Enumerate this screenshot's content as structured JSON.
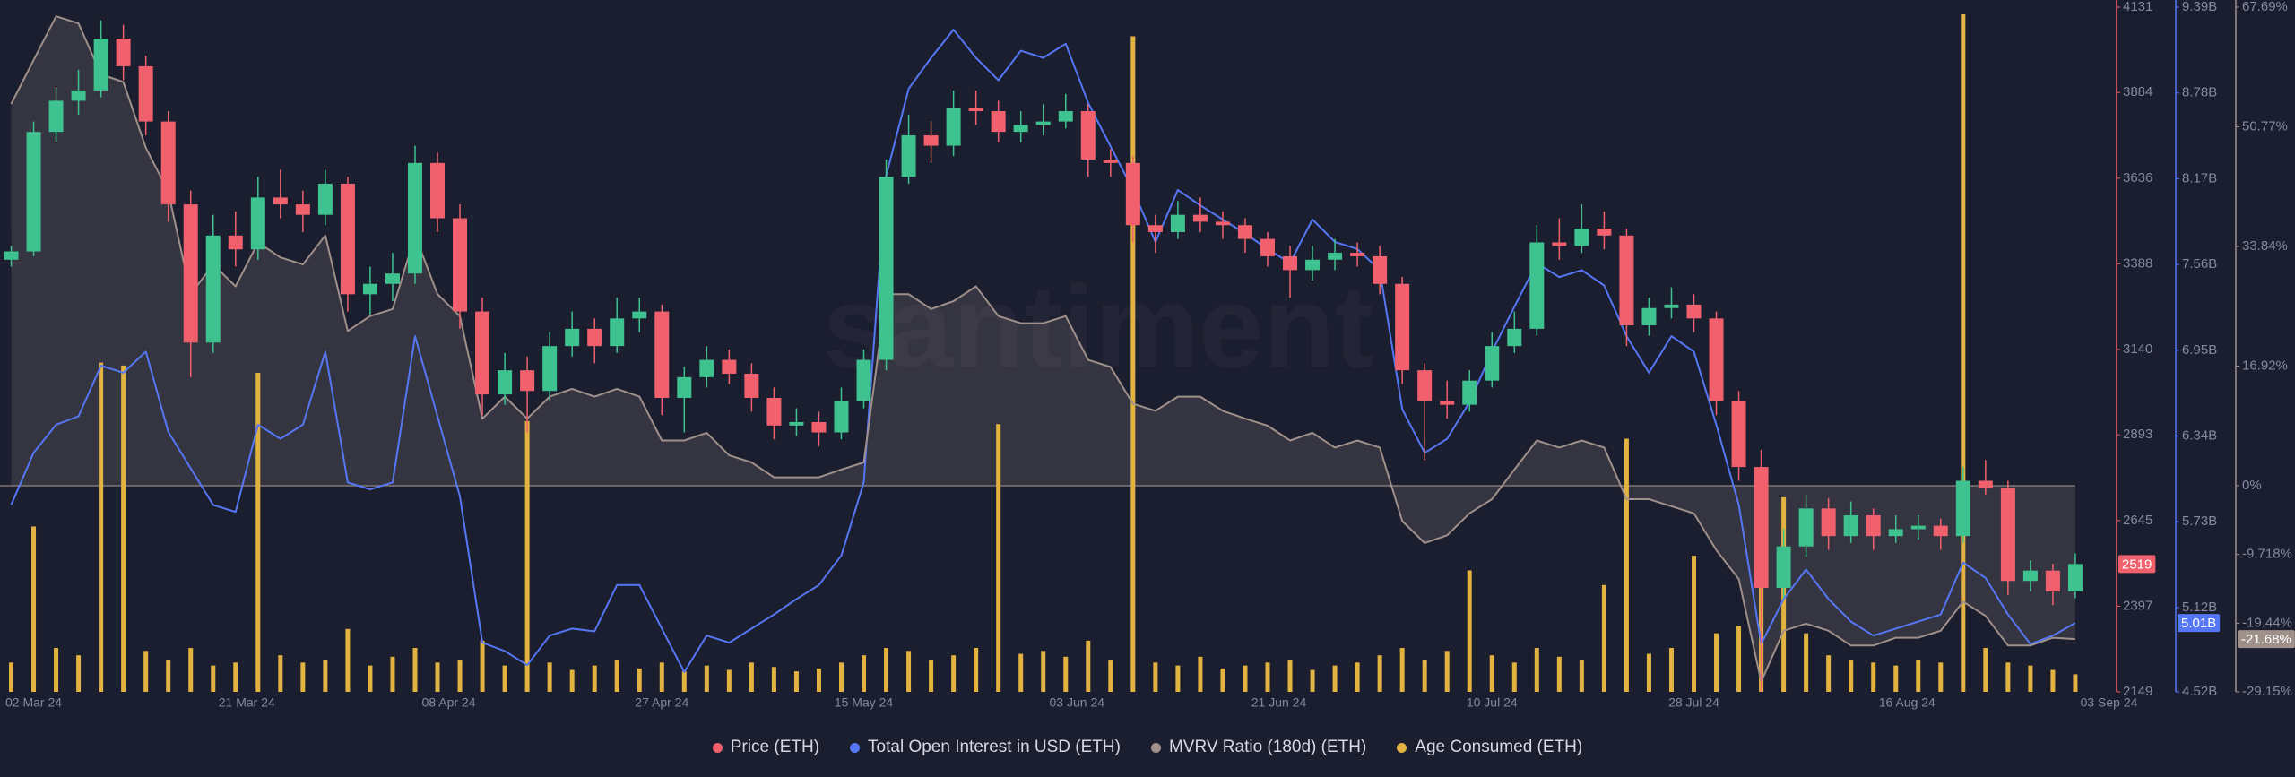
{
  "chart_data": {
    "type": "candlestick",
    "watermark": "santiment",
    "x": [
      "2024-02-29",
      "2024-03-02",
      "2024-03-04",
      "2024-03-06",
      "2024-03-08",
      "2024-03-10",
      "2024-03-12",
      "2024-03-14",
      "2024-03-16",
      "2024-03-18",
      "2024-03-20",
      "2024-03-22",
      "2024-03-24",
      "2024-03-26",
      "2024-03-28",
      "2024-03-30",
      "2024-04-01",
      "2024-04-03",
      "2024-04-05",
      "2024-04-07",
      "2024-04-09",
      "2024-04-11",
      "2024-04-13",
      "2024-04-15",
      "2024-04-17",
      "2024-04-19",
      "2024-04-21",
      "2024-04-23",
      "2024-04-25",
      "2024-04-27",
      "2024-04-29",
      "2024-05-01",
      "2024-05-03",
      "2024-05-05",
      "2024-05-07",
      "2024-05-09",
      "2024-05-11",
      "2024-05-13",
      "2024-05-15",
      "2024-05-17",
      "2024-05-19",
      "2024-05-21",
      "2024-05-23",
      "2024-05-25",
      "2024-05-27",
      "2024-05-29",
      "2024-05-31",
      "2024-06-02",
      "2024-06-04",
      "2024-06-06",
      "2024-06-08",
      "2024-06-10",
      "2024-06-12",
      "2024-06-14",
      "2024-06-16",
      "2024-06-18",
      "2024-06-20",
      "2024-06-22",
      "2024-06-24",
      "2024-06-26",
      "2024-06-28",
      "2024-06-30",
      "2024-07-02",
      "2024-07-04",
      "2024-07-06",
      "2024-07-08",
      "2024-07-10",
      "2024-07-12",
      "2024-07-14",
      "2024-07-16",
      "2024-07-18",
      "2024-07-20",
      "2024-07-22",
      "2024-07-24",
      "2024-07-26",
      "2024-07-28",
      "2024-07-30",
      "2024-08-01",
      "2024-08-03",
      "2024-08-05",
      "2024-08-07",
      "2024-08-09",
      "2024-08-11",
      "2024-08-13",
      "2024-08-15",
      "2024-08-17",
      "2024-08-19",
      "2024-08-21",
      "2024-08-23",
      "2024-08-25",
      "2024-08-27",
      "2024-08-29",
      "2024-08-31"
    ],
    "xlim": [
      "2024-02-28",
      "2024-09-04"
    ],
    "xticks": [
      {
        "value": "2024-03-02",
        "label": "02 Mar 24"
      },
      {
        "value": "2024-03-21",
        "label": "21 Mar 24"
      },
      {
        "value": "2024-04-08",
        "label": "08 Apr 24"
      },
      {
        "value": "2024-04-27",
        "label": "27 Apr 24"
      },
      {
        "value": "2024-05-15",
        "label": "15 May 24"
      },
      {
        "value": "2024-06-03",
        "label": "03 Jun 24"
      },
      {
        "value": "2024-06-21",
        "label": "21 Jun 24"
      },
      {
        "value": "2024-07-10",
        "label": "10 Jul 24"
      },
      {
        "value": "2024-07-28",
        "label": "28 Jul 24"
      },
      {
        "value": "2024-08-16",
        "label": "16 Aug 24"
      },
      {
        "value": "2024-09-03",
        "label": "03 Sep 24"
      }
    ],
    "ylim": [
      2149,
      4131
    ],
    "yticks": [
      4131,
      3884,
      3636,
      3388,
      3140,
      2893,
      2645,
      2397,
      2149
    ],
    "y2lim": [
      4520000000.0,
      9390000000.0
    ],
    "y2ticks": [
      {
        "value": 9390000000.0,
        "label": "9.39B"
      },
      {
        "value": 8780000000.0,
        "label": "8.78B"
      },
      {
        "value": 8170000000.0,
        "label": "8.17B"
      },
      {
        "value": 7560000000.0,
        "label": "7.56B"
      },
      {
        "value": 6950000000.0,
        "label": "6.95B"
      },
      {
        "value": 6340000000.0,
        "label": "6.34B"
      },
      {
        "value": 5730000000.0,
        "label": "5.73B"
      },
      {
        "value": 5120000000.0,
        "label": "5.12B"
      },
      {
        "value": 4520000000.0,
        "label": "4.52B"
      }
    ],
    "y3lim": [
      -29.15,
      67.69
    ],
    "y3ticks": [
      {
        "value": 67.69,
        "label": "67.69%"
      },
      {
        "value": 50.77,
        "label": "50.77%"
      },
      {
        "value": 33.84,
        "label": "33.84%"
      },
      {
        "value": 16.92,
        "label": "16.92%"
      },
      {
        "value": 0,
        "label": "0%"
      },
      {
        "value": -9.718,
        "label": "-9.718%"
      },
      {
        "value": -19.44,
        "label": "-19.44%"
      },
      {
        "value": -29.15,
        "label": "-29.15%"
      }
    ],
    "series": [
      {
        "name": "Price (ETH)",
        "type": "candlestick",
        "axis": "y",
        "color": "#f0616d",
        "up_color": "#3ec28f",
        "values": [
          [
            3400,
            3440,
            3380,
            3424
          ],
          [
            3424,
            3800,
            3410,
            3770
          ],
          [
            3770,
            3900,
            3740,
            3860
          ],
          [
            3860,
            3950,
            3820,
            3890
          ],
          [
            3890,
            4093,
            3870,
            4040
          ],
          [
            4040,
            4080,
            3920,
            3960
          ],
          [
            3960,
            3990,
            3760,
            3800
          ],
          [
            3800,
            3830,
            3510,
            3560
          ],
          [
            3560,
            3600,
            3060,
            3160
          ],
          [
            3160,
            3530,
            3130,
            3470
          ],
          [
            3470,
            3540,
            3380,
            3430
          ],
          [
            3430,
            3640,
            3400,
            3580
          ],
          [
            3580,
            3660,
            3520,
            3560
          ],
          [
            3560,
            3600,
            3480,
            3530
          ],
          [
            3530,
            3660,
            3500,
            3620
          ],
          [
            3620,
            3640,
            3250,
            3300
          ],
          [
            3300,
            3380,
            3240,
            3330
          ],
          [
            3330,
            3420,
            3280,
            3360
          ],
          [
            3360,
            3730,
            3330,
            3680
          ],
          [
            3680,
            3710,
            3480,
            3520
          ],
          [
            3520,
            3560,
            3200,
            3250
          ],
          [
            3250,
            3290,
            2950,
            3010
          ],
          [
            3010,
            3130,
            2980,
            3080
          ],
          [
            3080,
            3120,
            2900,
            3020
          ],
          [
            3020,
            3190,
            2990,
            3150
          ],
          [
            3150,
            3250,
            3120,
            3200
          ],
          [
            3200,
            3230,
            3100,
            3150
          ],
          [
            3150,
            3290,
            3130,
            3230
          ],
          [
            3230,
            3290,
            3190,
            3250
          ],
          [
            3250,
            3270,
            2950,
            3000
          ],
          [
            3000,
            3090,
            2900,
            3060
          ],
          [
            3060,
            3150,
            3030,
            3110
          ],
          [
            3110,
            3140,
            3040,
            3070
          ],
          [
            3070,
            3100,
            2960,
            3000
          ],
          [
            3000,
            3030,
            2880,
            2920
          ],
          [
            2920,
            2970,
            2890,
            2930
          ],
          [
            2930,
            2960,
            2860,
            2900
          ],
          [
            2900,
            3030,
            2880,
            2990
          ],
          [
            2990,
            3140,
            2970,
            3110
          ],
          [
            3110,
            3690,
            3080,
            3640
          ],
          [
            3640,
            3820,
            3620,
            3760
          ],
          [
            3760,
            3800,
            3680,
            3730
          ],
          [
            3730,
            3890,
            3700,
            3840
          ],
          [
            3840,
            3890,
            3790,
            3830
          ],
          [
            3830,
            3860,
            3740,
            3770
          ],
          [
            3770,
            3830,
            3740,
            3790
          ],
          [
            3790,
            3850,
            3760,
            3800
          ],
          [
            3800,
            3880,
            3780,
            3830
          ],
          [
            3830,
            3850,
            3640,
            3690
          ],
          [
            3690,
            3720,
            3640,
            3680
          ],
          [
            3680,
            3700,
            3450,
            3500
          ],
          [
            3500,
            3530,
            3420,
            3480
          ],
          [
            3480,
            3570,
            3460,
            3530
          ],
          [
            3530,
            3580,
            3480,
            3510
          ],
          [
            3510,
            3540,
            3460,
            3500
          ],
          [
            3500,
            3520,
            3420,
            3460
          ],
          [
            3460,
            3480,
            3380,
            3410
          ],
          [
            3410,
            3440,
            3290,
            3370
          ],
          [
            3370,
            3440,
            3340,
            3400
          ],
          [
            3400,
            3460,
            3370,
            3420
          ],
          [
            3420,
            3450,
            3380,
            3410
          ],
          [
            3410,
            3440,
            3300,
            3330
          ],
          [
            3330,
            3350,
            3040,
            3080
          ],
          [
            3080,
            3100,
            2820,
            2990
          ],
          [
            2990,
            3050,
            2940,
            2980
          ],
          [
            2980,
            3080,
            2960,
            3050
          ],
          [
            3050,
            3190,
            3030,
            3150
          ],
          [
            3150,
            3250,
            3130,
            3200
          ],
          [
            3200,
            3500,
            3180,
            3450
          ],
          [
            3450,
            3520,
            3400,
            3440
          ],
          [
            3440,
            3560,
            3420,
            3490
          ],
          [
            3490,
            3540,
            3430,
            3470
          ],
          [
            3470,
            3490,
            3150,
            3210
          ],
          [
            3210,
            3290,
            3180,
            3260
          ],
          [
            3260,
            3320,
            3230,
            3270
          ],
          [
            3270,
            3300,
            3190,
            3230
          ],
          [
            3230,
            3250,
            2950,
            2990
          ],
          [
            2990,
            3020,
            2760,
            2800
          ],
          [
            2800,
            2850,
            2150,
            2450
          ],
          [
            2450,
            2620,
            2420,
            2570
          ],
          [
            2570,
            2720,
            2540,
            2680
          ],
          [
            2680,
            2710,
            2560,
            2600
          ],
          [
            2600,
            2700,
            2580,
            2660
          ],
          [
            2660,
            2680,
            2560,
            2600
          ],
          [
            2600,
            2660,
            2580,
            2620
          ],
          [
            2620,
            2660,
            2590,
            2630
          ],
          [
            2630,
            2650,
            2560,
            2600
          ],
          [
            2600,
            2800,
            2580,
            2760
          ],
          [
            2760,
            2820,
            2720,
            2740
          ],
          [
            2740,
            2760,
            2430,
            2470
          ],
          [
            2470,
            2530,
            2440,
            2500
          ],
          [
            2500,
            2520,
            2400,
            2440
          ],
          [
            2440,
            2550,
            2420,
            2519
          ]
        ],
        "last_value": 2519
      },
      {
        "name": "Total Open Interest in USD (ETH)",
        "type": "line",
        "axis": "y2",
        "color": "#5677f5",
        "values": [
          5850000000.0,
          6220000000.0,
          6420000000.0,
          6480000000.0,
          6840000000.0,
          6790000000.0,
          6940000000.0,
          6370000000.0,
          6110000000.0,
          5850000000.0,
          5800000000.0,
          6420000000.0,
          6320000000.0,
          6420000000.0,
          6940000000.0,
          6010000000.0,
          5960000000.0,
          6010000000.0,
          7050000000.0,
          6480000000.0,
          5910000000.0,
          4870000000.0,
          4810000000.0,
          4710000000.0,
          4920000000.0,
          4970000000.0,
          4950000000.0,
          5280000000.0,
          5280000000.0,
          4970000000.0,
          4660000000.0,
          4920000000.0,
          4870000000.0,
          4970000000.0,
          5070000000.0,
          5180000000.0,
          5280000000.0,
          5490000000.0,
          6010000000.0,
          8190000000.0,
          8810000000.0,
          9030000000.0,
          9230000000.0,
          9030000000.0,
          8870000000.0,
          9080000000.0,
          9030000000.0,
          9130000000.0,
          8710000000.0,
          8400000000.0,
          8090000000.0,
          7720000000.0,
          8090000000.0,
          7980000000.0,
          7880000000.0,
          7780000000.0,
          7670000000.0,
          7570000000.0,
          7880000000.0,
          7720000000.0,
          7670000000.0,
          7520000000.0,
          6530000000.0,
          6220000000.0,
          6320000000.0,
          6580000000.0,
          6940000000.0,
          7260000000.0,
          7570000000.0,
          7470000000.0,
          7520000000.0,
          7410000000.0,
          7050000000.0,
          6790000000.0,
          7050000000.0,
          6940000000.0,
          6420000000.0,
          5850000000.0,
          4860000000.0,
          5180000000.0,
          5390000000.0,
          5180000000.0,
          5020000000.0,
          4920000000.0,
          4970000000.0,
          5020000000.0,
          5070000000.0,
          5440000000.0,
          5330000000.0,
          5070000000.0,
          4860000000.0,
          4920000000.0,
          5010000000.0
        ],
        "last_value": {
          "value": 5010000000.0,
          "label": "5.01B"
        }
      },
      {
        "name": "MVRV Ratio (180d) (ETH)",
        "type": "area",
        "axis": "y3",
        "color": "#a0908a",
        "values": [
          54.0,
          60.2,
          66.4,
          65.4,
          58.2,
          57.1,
          47.8,
          41.6,
          27.1,
          31.3,
          28.2,
          34.4,
          32.3,
          31.3,
          35.4,
          21.9,
          24.0,
          25.0,
          35.4,
          27.1,
          24.0,
          9.5,
          12.6,
          9.5,
          12.6,
          13.7,
          12.6,
          13.7,
          12.6,
          6.4,
          6.4,
          7.5,
          4.3,
          3.3,
          1.2,
          1.2,
          1.2,
          2.3,
          3.3,
          27.1,
          27.1,
          25.0,
          26.1,
          28.2,
          24.0,
          23.0,
          23.0,
          24.0,
          17.8,
          16.8,
          11.6,
          10.6,
          12.6,
          12.6,
          10.6,
          9.5,
          8.5,
          6.4,
          7.5,
          5.4,
          6.4,
          5.4,
          -5.0,
          -8.1,
          -7.0,
          -3.9,
          -1.9,
          2.3,
          6.4,
          5.4,
          6.4,
          5.4,
          -1.9,
          -1.9,
          -2.9,
          -3.9,
          -9.1,
          -13.2,
          -27.7,
          -20.5,
          -19.5,
          -20.5,
          -22.6,
          -22.6,
          -21.5,
          -21.5,
          -20.5,
          -16.4,
          -18.4,
          -22.6,
          -22.6,
          -21.5,
          -21.68
        ],
        "last_value": {
          "value": -21.68,
          "label": "-21.68%"
        }
      },
      {
        "name": "Age Consumed (ETH)",
        "type": "bar",
        "color": "#e3b341",
        "values": [
          20,
          113,
          30,
          25,
          225,
          223,
          28,
          22,
          30,
          18,
          20,
          218,
          25,
          20,
          22,
          43,
          18,
          24,
          30,
          20,
          22,
          35,
          18,
          185,
          20,
          15,
          18,
          22,
          16,
          20,
          14,
          18,
          15,
          20,
          17,
          14,
          16,
          20,
          25,
          30,
          28,
          22,
          25,
          30,
          183,
          26,
          28,
          24,
          35,
          22,
          448,
          20,
          18,
          24,
          16,
          18,
          20,
          22,
          15,
          18,
          20,
          25,
          30,
          22,
          28,
          83,
          25,
          20,
          30,
          24,
          22,
          73,
          173,
          26,
          30,
          93,
          40,
          45,
          128,
          133,
          40,
          25,
          22,
          20,
          18,
          22,
          20,
          463,
          30,
          20,
          18,
          15,
          12
        ]
      }
    ]
  }
}
